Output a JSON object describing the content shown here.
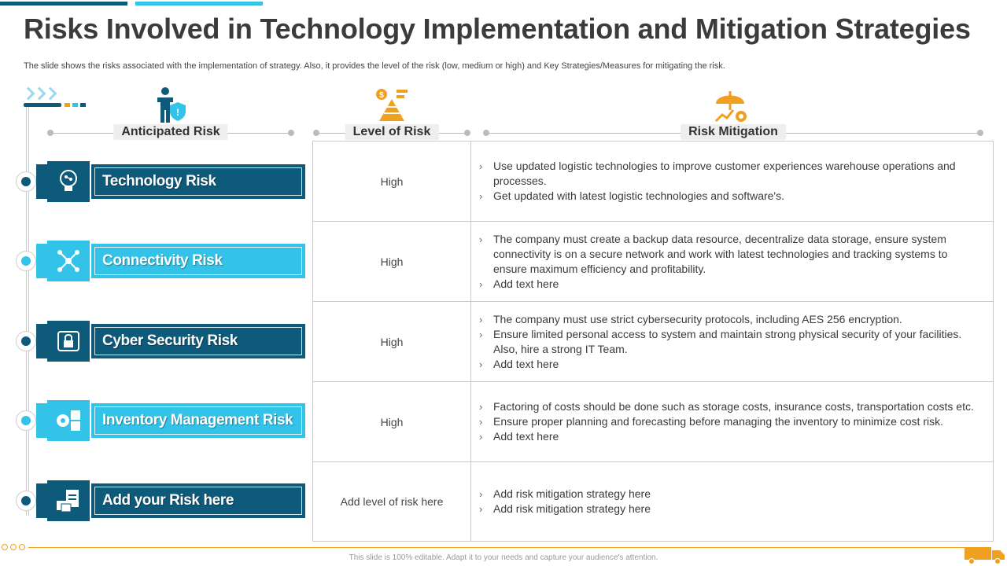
{
  "title": "Risks Involved in Technology Implementation and Mitigation Strategies",
  "subtitle": "The slide shows the risks associated with the implementation of strategy. Also, it provides the level of the risk (low, medium or high) and Key Strategies/Measures for mitigating the risk.",
  "headers": {
    "risk": "Anticipated Risk",
    "level": "Level of Risk",
    "mitigation": "Risk Mitigation"
  },
  "risks": [
    {
      "name": "Technology Risk",
      "icon": "technology-bulb-icon",
      "level": "High",
      "mitigation": [
        "Use updated logistic technologies to improve customer experiences warehouse operations and processes.",
        "Get updated with latest logistic technologies and software's."
      ]
    },
    {
      "name": "Connectivity Risk",
      "icon": "network-connectivity-icon",
      "level": "High",
      "mitigation": [
        "The company must create a backup data resource, decentralize data storage, ensure system connectivity is on a secure network and work with latest technologies and tracking systems to ensure maximum efficiency and profitability.",
        "Add text here"
      ]
    },
    {
      "name": "Cyber Security Risk",
      "icon": "cyber-lock-icon",
      "level": "High",
      "mitigation": [
        "The company must use strict cybersecurity protocols, including AES 256 encryption.",
        "Ensure limited personal access to system and maintain strong physical security of your facilities. Also, hire a strong IT Team.",
        "Add text here"
      ]
    },
    {
      "name": "Inventory Management Risk",
      "icon": "inventory-gear-icon",
      "level": "High",
      "mitigation": [
        "Factoring of costs should be done such as storage costs, insurance costs, transportation costs etc.",
        "Ensure proper planning and forecasting before managing the inventory to minimize cost risk.",
        "Add text here"
      ]
    },
    {
      "name": "Add your Risk here",
      "icon": "clipboard-boxes-icon",
      "level": "Add level of risk here",
      "mitigation": [
        "Add risk mitigation strategy here",
        "Add risk mitigation strategy here"
      ]
    }
  ],
  "footer": "This slide is 100% editable. Adapt it to your needs and capture your audience's attention.",
  "colors": {
    "dark": "#0e5a7a",
    "light": "#33c3e8",
    "accent": "#f0a020"
  }
}
